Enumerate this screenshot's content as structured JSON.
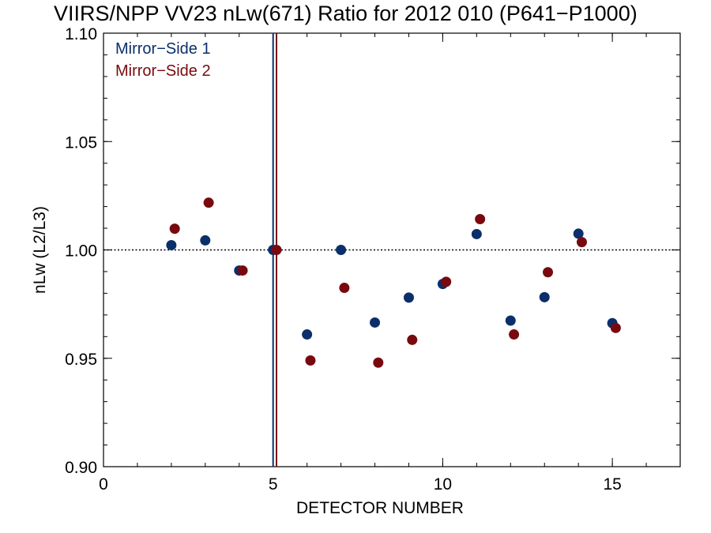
{
  "chart_data": {
    "type": "scatter",
    "title": "VIIRS/NPP VV23 nLw(671) Ratio for 2012 010 (P641−P1000)",
    "xlabel": "DETECTOR NUMBER",
    "ylabel": "nLw (L2/L3)",
    "xlim": [
      0,
      17
    ],
    "ylim": [
      0.9,
      1.1
    ],
    "x_ticks": [
      0,
      5,
      10,
      15
    ],
    "y_ticks": [
      0.9,
      0.95,
      1.0,
      1.05,
      1.1
    ],
    "x_tick_labels": [
      "0",
      "5",
      "10",
      "15"
    ],
    "y_tick_labels": [
      "0.90",
      "0.95",
      "1.00",
      "1.05",
      "1.10"
    ],
    "reference_line_y": 1.0,
    "series": [
      {
        "name": "Mirror−Side 1",
        "color": "#0b2f6b",
        "vline_x": 5,
        "points": [
          {
            "x": 2,
            "y": 1.0022
          },
          {
            "x": 3,
            "y": 1.0044
          },
          {
            "x": 4,
            "y": 0.9905
          },
          {
            "x": 5,
            "y": 1.0
          },
          {
            "x": 6,
            "y": 0.961
          },
          {
            "x": 7,
            "y": 1.0
          },
          {
            "x": 8,
            "y": 0.9665
          },
          {
            "x": 9,
            "y": 0.978
          },
          {
            "x": 10,
            "y": 0.9843
          },
          {
            "x": 11,
            "y": 1.0073
          },
          {
            "x": 12,
            "y": 0.9674
          },
          {
            "x": 13,
            "y": 0.9782
          },
          {
            "x": 14,
            "y": 1.0075
          },
          {
            "x": 15,
            "y": 0.9662
          }
        ]
      },
      {
        "name": "Mirror−Side 2",
        "color": "#780a0f",
        "vline_x": 5.1,
        "points": [
          {
            "x": 2.1,
            "y": 1.0098
          },
          {
            "x": 3.1,
            "y": 1.0218
          },
          {
            "x": 4.1,
            "y": 0.9905
          },
          {
            "x": 5.1,
            "y": 1.0
          },
          {
            "x": 6.1,
            "y": 0.949
          },
          {
            "x": 7.1,
            "y": 0.9825
          },
          {
            "x": 8.1,
            "y": 0.948
          },
          {
            "x": 9.1,
            "y": 0.9585
          },
          {
            "x": 10.1,
            "y": 0.9853
          },
          {
            "x": 11.1,
            "y": 1.0142
          },
          {
            "x": 12.1,
            "y": 0.961
          },
          {
            "x": 13.1,
            "y": 0.9897
          },
          {
            "x": 14.1,
            "y": 1.0036
          },
          {
            "x": 15.1,
            "y": 0.964
          }
        ]
      }
    ]
  }
}
